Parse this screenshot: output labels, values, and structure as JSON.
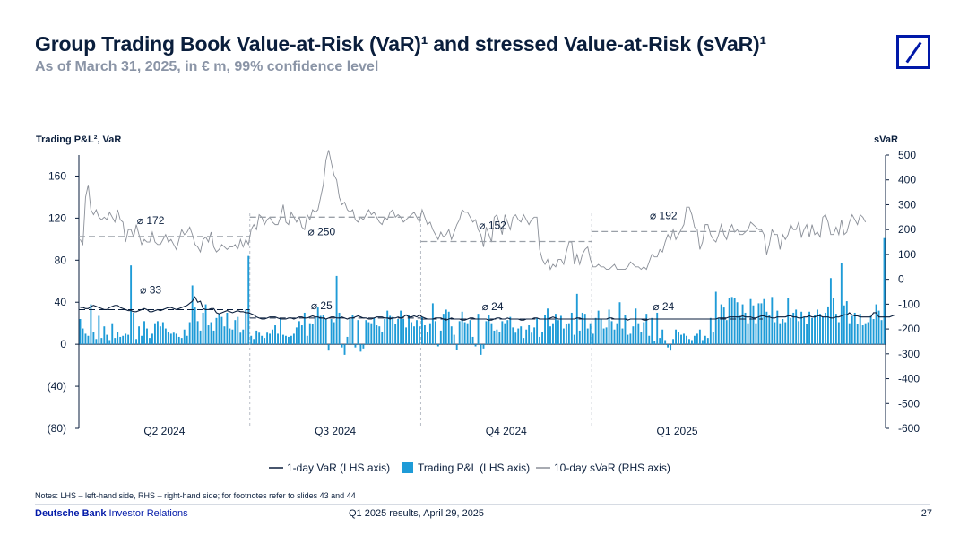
{
  "title": "Group Trading Book Value-at-Risk (VaR)¹ and stressed Value-at-Risk (sVaR)¹",
  "subtitle": "As of March 31, 2025, in € m, 99% confidence level",
  "logo": {
    "name": "deutsche-bank-logo",
    "color": "#0018a8"
  },
  "colors": {
    "var_line": "#0a1e3c",
    "pnl_bar": "#1e9bd7",
    "svar_line": "#8a8f98",
    "avg_line": "#9aa0a8",
    "divider": "#b8bdc6"
  },
  "chart_data": {
    "type": "bar+line",
    "left_axis": {
      "title": "Trading P&L², VaR",
      "ticks": [
        "160",
        "120",
        "80",
        "40",
        "0",
        "(40)",
        "(80)"
      ],
      "tick_values": [
        160,
        120,
        80,
        40,
        0,
        -40,
        -80
      ],
      "range": [
        -80,
        180
      ]
    },
    "right_axis": {
      "title": "sVaR",
      "ticks": [
        "500",
        "400",
        "300",
        "200",
        "100",
        "0",
        "-100",
        "-200",
        "-300",
        "-400",
        "-500",
        "-600"
      ],
      "tick_values": [
        500,
        400,
        300,
        200,
        100,
        0,
        -100,
        -200,
        -300,
        -400,
        -500,
        -600
      ],
      "range": [
        -600,
        500
      ]
    },
    "quarters": [
      "Q2 2024",
      "Q3 2024",
      "Q4 2024",
      "Q1 2025"
    ],
    "days_per_quarter": 64,
    "svar_averages": [
      {
        "label": "⌀ 172",
        "value": 172
      },
      {
        "label": "⌀ 250",
        "value": 250
      },
      {
        "label": "⌀ 152",
        "value": 152
      },
      {
        "label": "⌀ 192",
        "value": 192
      }
    ],
    "var_averages": [
      {
        "label": "⌀ 33",
        "value": 33
      },
      {
        "label": "⌀ 25",
        "value": 25
      },
      {
        "label": "⌀ 24",
        "value": 24
      },
      {
        "label": "⌀ 24",
        "value": 24
      }
    ],
    "pnl_series": {
      "name": "Trading P&L (LHS axis)",
      "values": [
        24,
        15,
        10,
        8,
        38,
        12,
        5,
        27,
        6,
        17,
        9,
        4,
        20,
        6,
        12,
        7,
        8,
        10,
        9,
        75,
        30,
        5,
        17,
        8,
        22,
        15,
        6,
        10,
        20,
        22,
        17,
        21,
        15,
        12,
        10,
        11,
        10,
        7,
        6,
        14,
        8,
        21,
        56,
        35,
        22,
        13,
        30,
        38,
        18,
        21,
        13,
        25,
        29,
        26,
        17,
        30,
        15,
        14,
        23,
        26,
        11,
        14,
        33,
        84,
        8,
        5,
        13,
        11,
        8,
        6,
        11,
        10,
        14,
        18,
        10,
        25,
        9,
        8,
        7,
        8,
        10,
        16,
        22,
        18,
        30,
        8,
        20,
        19,
        26,
        35,
        27,
        28,
        24,
        -6,
        24,
        21,
        65,
        30,
        -3,
        -10,
        7,
        24,
        28,
        -3,
        23,
        -7,
        -4,
        23,
        21,
        20,
        25,
        18,
        17,
        12,
        24,
        32,
        27,
        26,
        19,
        24,
        32,
        24,
        16,
        28,
        21,
        17,
        23,
        17,
        26,
        18,
        12,
        20,
        39,
        22,
        -2,
        13,
        29,
        33,
        31,
        17,
        9,
        -5,
        22,
        31,
        21,
        20,
        23,
        7,
        -2,
        29,
        -10,
        -4,
        22,
        28,
        20,
        13,
        14,
        12,
        22,
        20,
        23,
        26,
        16,
        11,
        15,
        17,
        6,
        14,
        18,
        11,
        16,
        25,
        7,
        12,
        28,
        34,
        17,
        20,
        29,
        23,
        27,
        15,
        19,
        20,
        30,
        9,
        48,
        13,
        30,
        29,
        15,
        20,
        10,
        25,
        32,
        24,
        15,
        16,
        33,
        22,
        14,
        20,
        40,
        15,
        28,
        9,
        10,
        17,
        34,
        20,
        12,
        21,
        29,
        8,
        25,
        3,
        30,
        6,
        14,
        4,
        -3,
        -6,
        5,
        14,
        12,
        9,
        10,
        8,
        5,
        4,
        8,
        10,
        14,
        4,
        8,
        6,
        25,
        12,
        50,
        25,
        38,
        35,
        23,
        44,
        45,
        44,
        40,
        27,
        38,
        30,
        20,
        43,
        37,
        20,
        39,
        39,
        43,
        31,
        28,
        45,
        21,
        32,
        20,
        24,
        21,
        44,
        25,
        30,
        33,
        22,
        31,
        26,
        19,
        31,
        25,
        28,
        33,
        29,
        26,
        30,
        36,
        63,
        44,
        29,
        21,
        77,
        37,
        41,
        20,
        27,
        30,
        19,
        29,
        18,
        20,
        21,
        27,
        24,
        38,
        32,
        23,
        101
      ]
    },
    "var_series": {
      "name": "1-day VaR (LHS axis)",
      "values": [
        35,
        35,
        34,
        34,
        36,
        37,
        36,
        35,
        34,
        33,
        33,
        35,
        36,
        37,
        37,
        35,
        34,
        33,
        32,
        32,
        31,
        31,
        32,
        33,
        34,
        33,
        31,
        31,
        32,
        33,
        32,
        33,
        34,
        35,
        35,
        34,
        33,
        34,
        35,
        36,
        37,
        39,
        41,
        45,
        40,
        41,
        34,
        33,
        33,
        34,
        34,
        30,
        29,
        30,
        31,
        32,
        31,
        30,
        31,
        32,
        31,
        31,
        30,
        30,
        29,
        28,
        26,
        25,
        24,
        24,
        25,
        26,
        26,
        26,
        25,
        24,
        24,
        24,
        25,
        25,
        24,
        25,
        26,
        26,
        25,
        25,
        26,
        27,
        26,
        26,
        25,
        25,
        24,
        25,
        26,
        26,
        25,
        25,
        26,
        25,
        24,
        25,
        25,
        26,
        27,
        26,
        25,
        25,
        24,
        24,
        25,
        26,
        26,
        26,
        25,
        25,
        24,
        25,
        25,
        26,
        25,
        26,
        28,
        26,
        26,
        27,
        26,
        28,
        26,
        25,
        24,
        24,
        24,
        25,
        25,
        25,
        24,
        23,
        24,
        25,
        24,
        24,
        24,
        23,
        23,
        24,
        25,
        25,
        24,
        24,
        24,
        24,
        24,
        23,
        23,
        24,
        25,
        25,
        24,
        24,
        25,
        24,
        24,
        24,
        24,
        23,
        23,
        24,
        24,
        24,
        25,
        25,
        24,
        24,
        24,
        24,
        25,
        26,
        25,
        24,
        24,
        24,
        24,
        24,
        24,
        24,
        25,
        25,
        24,
        24,
        24,
        24,
        24,
        24,
        24,
        24,
        24,
        24,
        25,
        25,
        24,
        24,
        24,
        24,
        24,
        23,
        24,
        24,
        24,
        24,
        24,
        23,
        23,
        24,
        24,
        24,
        24,
        24,
        24,
        24,
        24,
        24,
        24,
        24,
        24,
        24,
        24,
        24,
        24,
        24,
        24,
        24,
        24,
        24,
        24,
        24,
        24,
        24,
        24,
        25,
        25,
        25,
        25,
        26,
        26,
        26,
        26,
        26,
        27,
        26,
        26,
        26,
        25,
        25,
        26,
        27,
        27,
        26,
        26,
        25,
        25,
        26,
        26,
        26,
        26,
        27,
        27,
        26,
        26,
        25,
        25,
        26,
        26,
        27,
        26,
        26,
        27,
        27,
        26,
        26,
        26,
        25,
        25,
        26,
        26,
        27,
        28,
        28,
        30,
        28,
        27,
        27,
        26,
        26,
        26,
        26,
        26,
        30,
        30,
        26,
        26,
        26,
        26,
        26,
        27,
        28
      ]
    },
    "svar_series": {
      "name": "10-day sVaR (RHS axis)",
      "values": [
        160,
        140,
        330,
        380,
        280,
        260,
        280,
        250,
        240,
        250,
        240,
        270,
        250,
        230,
        280,
        240,
        230,
        150,
        200,
        200,
        170,
        220,
        180,
        140,
        160,
        150,
        150,
        190,
        150,
        140,
        140,
        160,
        180,
        150,
        160,
        140,
        120,
        160,
        200,
        180,
        190,
        210,
        180,
        140,
        130,
        110,
        160,
        170,
        150,
        190,
        130,
        110,
        120,
        140,
        130,
        120,
        130,
        130,
        140,
        120,
        160,
        130,
        160,
        140,
        200,
        220,
        200,
        260,
        250,
        220,
        240,
        250,
        230,
        220,
        220,
        250,
        300,
        230,
        220,
        270,
        250,
        230,
        250,
        210,
        200,
        260,
        240,
        280,
        270,
        280,
        330,
        380,
        480,
        520,
        470,
        420,
        400,
        330,
        300,
        310,
        280,
        270,
        280,
        240,
        230,
        250,
        240,
        260,
        280,
        260,
        270,
        250,
        230,
        220,
        250,
        240,
        270,
        280,
        250,
        260,
        250,
        230,
        240,
        250,
        260,
        270,
        250,
        230,
        280,
        250,
        220,
        230,
        200,
        180,
        160,
        190,
        170,
        180,
        200,
        160,
        190,
        220,
        240,
        280,
        270,
        270,
        250,
        230,
        240,
        200,
        180,
        130,
        210,
        180,
        150,
        250,
        260,
        220,
        180,
        260,
        230,
        200,
        250,
        260,
        240,
        230,
        260,
        240,
        220,
        240,
        250,
        250,
        120,
        80,
        60,
        80,
        40,
        60,
        50,
        80,
        80,
        60,
        110,
        150,
        150,
        60,
        100,
        60,
        100,
        120,
        130,
        80,
        50,
        50,
        60,
        50,
        50,
        40,
        40,
        50,
        60,
        40,
        40,
        40,
        40,
        50,
        70,
        60,
        50,
        50,
        40,
        50,
        40,
        70,
        100,
        90,
        90,
        120,
        110,
        150,
        180,
        160,
        200,
        160,
        180,
        200,
        220,
        290,
        290,
        260,
        210,
        200,
        120,
        150,
        220,
        220,
        180,
        160,
        150,
        180,
        220,
        180,
        160,
        200,
        220,
        190,
        200,
        180,
        180,
        190,
        200,
        230,
        220,
        210,
        200,
        200,
        180,
        100,
        140,
        200,
        180,
        180,
        120,
        180,
        160,
        180,
        220,
        200,
        200,
        230,
        170,
        200,
        220,
        170,
        220,
        180,
        190,
        170,
        250,
        260,
        230,
        180,
        180,
        210,
        180,
        240,
        180,
        190,
        230,
        260,
        240,
        220,
        260,
        250,
        230
      ]
    },
    "legend": [
      "1-day VaR (LHS axis)",
      "Trading P&L (LHS axis)",
      "10-day sVaR (RHS axis)"
    ]
  },
  "notes": "Notes: LHS – left-hand side, RHS – right-hand side; for footnotes refer to slides 43 and 44",
  "footer": {
    "brand_bold": "Deutsche Bank",
    "brand_rest": " Investor Relations",
    "center": "Q1 2025 results, April 29, 2025",
    "page_number": "27"
  }
}
